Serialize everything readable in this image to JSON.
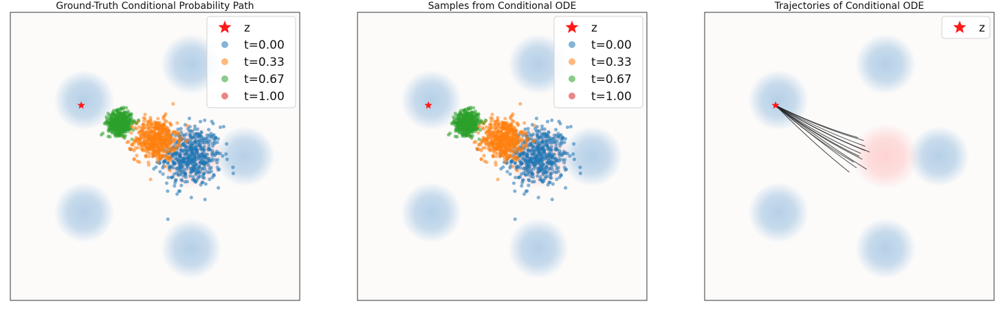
{
  "figure": {
    "background": "#ffffff",
    "colors": {
      "axes_bg": "#fcfbfa",
      "blob_blue": "#a9c8e4",
      "blob_pink": "#ffb3b3",
      "t0": "#1f77b4",
      "t033": "#ff7f0e",
      "t067": "#2ca02c",
      "t1": "#d62728",
      "star": "#ff1a1a",
      "trajectory": "#222222"
    }
  },
  "chart_data": [
    {
      "type": "scatter",
      "title": "Ground-Truth Conditional Probability Path",
      "xlabel": "",
      "ylabel": "",
      "xlim": [
        -5,
        5
      ],
      "ylim": [
        -5,
        5
      ],
      "grid": false,
      "legend_position": "top-right",
      "legend": [
        "z",
        "t=0.00",
        "t=0.33",
        "t=0.67",
        "t=1.00"
      ],
      "z": [
        -2.55,
        1.77
      ],
      "gaussian_modes": [
        [
          1.25,
          3.2
        ],
        [
          -2.45,
          1.95
        ],
        [
          3.1,
          0.0
        ],
        [
          -2.45,
          -1.95
        ],
        [
          1.25,
          -3.2
        ]
      ],
      "target_blob": [
        1.25,
        0.0
      ],
      "series": [
        {
          "name": "t=0.00",
          "center": [
            1.25,
            0.0
          ],
          "spread": 0.52,
          "count": 520
        },
        {
          "name": "t=0.33",
          "center": [
            0.03,
            0.59
          ],
          "spread": 0.36,
          "count": 520
        },
        {
          "name": "t=0.67",
          "center": [
            -1.21,
            1.17
          ],
          "spread": 0.2,
          "count": 520
        },
        {
          "name": "t=1.00",
          "center": [
            -2.55,
            1.77
          ],
          "spread": 0.0,
          "count": 1
        }
      ]
    },
    {
      "type": "scatter",
      "title": "Samples from Conditional ODE",
      "xlabel": "",
      "ylabel": "",
      "xlim": [
        -5,
        5
      ],
      "ylim": [
        -5,
        5
      ],
      "grid": false,
      "legend_position": "top-right",
      "legend": [
        "z",
        "t=0.00",
        "t=0.33",
        "t=0.67",
        "t=1.00"
      ],
      "z": [
        -2.55,
        1.77
      ],
      "gaussian_modes": [
        [
          1.25,
          3.2
        ],
        [
          -2.45,
          1.95
        ],
        [
          3.1,
          0.0
        ],
        [
          -2.45,
          -1.95
        ],
        [
          1.25,
          -3.2
        ]
      ],
      "target_blob": [
        1.25,
        0.0
      ],
      "series": [
        {
          "name": "t=0.00",
          "center": [
            1.25,
            0.0
          ],
          "spread": 0.52,
          "count": 520
        },
        {
          "name": "t=0.33",
          "center": [
            0.03,
            0.59
          ],
          "spread": 0.36,
          "count": 520
        },
        {
          "name": "t=0.67",
          "center": [
            -1.21,
            1.17
          ],
          "spread": 0.2,
          "count": 520
        },
        {
          "name": "t=1.00",
          "center": [
            -2.55,
            1.77
          ],
          "spread": 0.0,
          "count": 1
        }
      ]
    },
    {
      "type": "line",
      "title": "Trajectories of Conditional ODE",
      "xlabel": "",
      "ylabel": "",
      "xlim": [
        -5,
        5
      ],
      "ylim": [
        -5,
        5
      ],
      "grid": false,
      "legend_position": "top-right",
      "legend": [
        "z"
      ],
      "z": [
        -2.55,
        1.77
      ],
      "gaussian_modes": [
        [
          1.25,
          3.2
        ],
        [
          -2.45,
          1.95
        ],
        [
          3.1,
          0.0
        ],
        [
          -2.45,
          -1.95
        ],
        [
          1.25,
          -3.2
        ]
      ],
      "target_blob": [
        1.25,
        0.0
      ],
      "trajectory_starts": [
        [
          0.3,
          0.65
        ],
        [
          0.55,
          0.2
        ],
        [
          0.45,
          -0.1
        ],
        [
          0.6,
          -0.45
        ],
        [
          0.0,
          -0.55
        ],
        [
          0.15,
          -0.2
        ],
        [
          0.55,
          0.35
        ],
        [
          0.7,
          0.15
        ],
        [
          0.35,
          0.0
        ],
        [
          0.25,
          -0.4
        ],
        [
          0.5,
          0.55
        ],
        [
          0.4,
          0.1
        ]
      ]
    }
  ]
}
